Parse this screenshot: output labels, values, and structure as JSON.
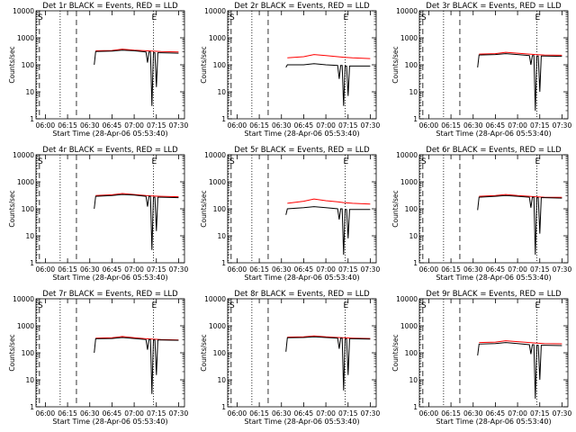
{
  "chart_data": [
    {
      "type": "line",
      "title": "Det 1r BLACK = Events, RED = LLD",
      "xlabel": "Start Time (28-Apr-06 05:53:40)",
      "ylabel": "Counts/sec",
      "yscale": "log",
      "ylim": [
        1,
        10000
      ],
      "xlim": [
        "05:53:40",
        "07:34:00"
      ],
      "x_ticks": [
        "06:00",
        "06:15",
        "06:30",
        "06:45",
        "07:00",
        "07:15",
        "07:30"
      ],
      "y_ticks": [
        "1",
        "10",
        "100",
        "1000",
        "10000"
      ],
      "markers": [
        "S",
        "E"
      ],
      "vlines_dotted": [
        "05:54",
        "06:10",
        "07:13"
      ],
      "vlines_dashed": [
        "05:56",
        "06:21"
      ],
      "series": [
        {
          "name": "Events",
          "color": "#000000",
          "x": [
            "06:33",
            "06:34",
            "06:45",
            "06:52",
            "07:00",
            "07:08",
            "07:09",
            "07:10",
            "07:11",
            "07:12",
            "07:13",
            "07:14",
            "07:15",
            "07:16",
            "07:17",
            "07:18",
            "07:30"
          ],
          "values": [
            100,
            310,
            320,
            350,
            330,
            300,
            120,
            300,
            300,
            3,
            280,
            280,
            15,
            280,
            280,
            280,
            270
          ]
        },
        {
          "name": "LLD",
          "color": "#ff0000",
          "x": [
            "06:34",
            "06:45",
            "06:52",
            "07:00",
            "07:08",
            "07:12",
            "07:18",
            "07:30"
          ],
          "values": [
            330,
            340,
            380,
            350,
            330,
            320,
            310,
            300
          ]
        }
      ]
    },
    {
      "type": "line",
      "title": "Det 2r BLACK = Events, RED = LLD",
      "xlabel": "Start Time (28-Apr-06 05:53:40)",
      "ylabel": "Counts/sec",
      "yscale": "log",
      "ylim": [
        1,
        10000
      ],
      "xlim": [
        "05:53:40",
        "07:34:00"
      ],
      "x_ticks": [
        "06:00",
        "06:15",
        "06:30",
        "06:45",
        "07:00",
        "07:15",
        "07:30"
      ],
      "y_ticks": [
        "1",
        "10",
        "100",
        "1000",
        "10000"
      ],
      "markers": [
        "S",
        "E"
      ],
      "vlines_dotted": [
        "05:54",
        "06:10",
        "07:13"
      ],
      "vlines_dashed": [
        "05:56",
        "06:21"
      ],
      "series": [
        {
          "name": "Events",
          "color": "#000000",
          "x": [
            "06:33",
            "06:34",
            "06:45",
            "06:52",
            "07:00",
            "07:08",
            "07:09",
            "07:10",
            "07:11",
            "07:12",
            "07:13",
            "07:14",
            "07:15",
            "07:16",
            "07:17",
            "07:18",
            "07:30"
          ],
          "values": [
            80,
            100,
            100,
            110,
            100,
            95,
            30,
            95,
            95,
            3,
            90,
            90,
            7,
            90,
            90,
            90,
            90
          ]
        },
        {
          "name": "LLD",
          "color": "#ff0000",
          "x": [
            "06:34",
            "06:45",
            "06:52",
            "07:00",
            "07:08",
            "07:12",
            "07:18",
            "07:30"
          ],
          "values": [
            180,
            200,
            240,
            220,
            200,
            190,
            180,
            170
          ]
        }
      ]
    },
    {
      "type": "line",
      "title": "Det 3r BLACK = Events, RED = LLD",
      "xlabel": "Start Time (28-Apr-06 05:53:40)",
      "ylabel": "Counts/sec",
      "yscale": "log",
      "ylim": [
        1,
        10000
      ],
      "xlim": [
        "05:53:40",
        "07:34:00"
      ],
      "x_ticks": [
        "06:00",
        "06:15",
        "06:30",
        "06:45",
        "07:00",
        "07:15",
        "07:30"
      ],
      "y_ticks": [
        "1",
        "10",
        "100",
        "1000",
        "10000"
      ],
      "markers": [
        "S",
        "E"
      ],
      "vlines_dotted": [
        "05:54",
        "06:10",
        "07:13"
      ],
      "vlines_dashed": [
        "05:56",
        "06:21"
      ],
      "series": [
        {
          "name": "Events",
          "color": "#000000",
          "x": [
            "06:33",
            "06:34",
            "06:45",
            "06:52",
            "07:00",
            "07:08",
            "07:09",
            "07:10",
            "07:11",
            "07:12",
            "07:13",
            "07:14",
            "07:15",
            "07:16",
            "07:17",
            "07:18",
            "07:30"
          ],
          "values": [
            80,
            230,
            240,
            260,
            240,
            220,
            100,
            220,
            220,
            2,
            210,
            210,
            10,
            210,
            210,
            210,
            205
          ]
        },
        {
          "name": "LLD",
          "color": "#ff0000",
          "x": [
            "06:34",
            "06:45",
            "06:52",
            "07:00",
            "07:08",
            "07:12",
            "07:18",
            "07:30"
          ],
          "values": [
            250,
            260,
            290,
            270,
            250,
            240,
            230,
            225
          ]
        }
      ]
    },
    {
      "type": "line",
      "title": "Det 4r BLACK = Events, RED = LLD",
      "xlabel": "Start Time (28-Apr-06 05:53:40)",
      "ylabel": "Counts/sec",
      "yscale": "log",
      "ylim": [
        1,
        10000
      ],
      "xlim": [
        "05:53:40",
        "07:34:00"
      ],
      "x_ticks": [
        "06:00",
        "06:15",
        "06:30",
        "06:45",
        "07:00",
        "07:15",
        "07:30"
      ],
      "y_ticks": [
        "1",
        "10",
        "100",
        "1000",
        "10000"
      ],
      "markers": [
        "S",
        "E"
      ],
      "vlines_dotted": [
        "05:54",
        "06:10",
        "07:13"
      ],
      "vlines_dashed": [
        "05:56",
        "06:21"
      ],
      "series": [
        {
          "name": "Events",
          "color": "#000000",
          "x": [
            "06:33",
            "06:34",
            "06:45",
            "06:52",
            "07:00",
            "07:08",
            "07:09",
            "07:10",
            "07:11",
            "07:12",
            "07:13",
            "07:14",
            "07:15",
            "07:16",
            "07:17",
            "07:18",
            "07:30"
          ],
          "values": [
            100,
            290,
            310,
            340,
            320,
            290,
            120,
            290,
            290,
            3,
            270,
            270,
            15,
            270,
            270,
            270,
            260
          ]
        },
        {
          "name": "LLD",
          "color": "#ff0000",
          "x": [
            "06:34",
            "06:45",
            "06:52",
            "07:00",
            "07:08",
            "07:12",
            "07:18",
            "07:30"
          ],
          "values": [
            310,
            330,
            370,
            340,
            310,
            300,
            290,
            280
          ]
        }
      ]
    },
    {
      "type": "line",
      "title": "Det 5r BLACK = Events, RED = LLD",
      "xlabel": "Start Time (28-Apr-06 05:53:40)",
      "ylabel": "Counts/sec",
      "yscale": "log",
      "ylim": [
        1,
        10000
      ],
      "xlim": [
        "05:53:40",
        "07:34:00"
      ],
      "x_ticks": [
        "06:00",
        "06:15",
        "06:30",
        "06:45",
        "07:00",
        "07:15",
        "07:30"
      ],
      "y_ticks": [
        "1",
        "10",
        "100",
        "1000",
        "10000"
      ],
      "markers": [
        "S",
        "E"
      ],
      "vlines_dotted": [
        "05:54",
        "06:10",
        "07:13"
      ],
      "vlines_dashed": [
        "05:56",
        "06:21"
      ],
      "series": [
        {
          "name": "Events",
          "color": "#000000",
          "x": [
            "06:33",
            "06:34",
            "06:45",
            "06:52",
            "07:00",
            "07:08",
            "07:09",
            "07:10",
            "07:11",
            "07:12",
            "07:13",
            "07:14",
            "07:15",
            "07:16",
            "07:17",
            "07:18",
            "07:30"
          ],
          "values": [
            60,
            100,
            110,
            120,
            110,
            100,
            40,
            100,
            100,
            2,
            95,
            95,
            8,
            95,
            95,
            95,
            95
          ]
        },
        {
          "name": "LLD",
          "color": "#ff0000",
          "x": [
            "06:34",
            "06:45",
            "06:52",
            "07:00",
            "07:08",
            "07:12",
            "07:18",
            "07:30"
          ],
          "values": [
            160,
            190,
            230,
            200,
            180,
            170,
            160,
            150
          ]
        }
      ]
    },
    {
      "type": "line",
      "title": "Det 6r BLACK = Events, RED = LLD",
      "xlabel": "Start Time (28-Apr-06 05:53:40)",
      "ylabel": "Counts/sec",
      "yscale": "log",
      "ylim": [
        1,
        10000
      ],
      "xlim": [
        "05:53:40",
        "07:34:00"
      ],
      "x_ticks": [
        "06:00",
        "06:15",
        "06:30",
        "06:45",
        "07:00",
        "07:15",
        "07:30"
      ],
      "y_ticks": [
        "1",
        "10",
        "100",
        "1000",
        "10000"
      ],
      "markers": [
        "S",
        "E"
      ],
      "vlines_dotted": [
        "05:54",
        "06:10",
        "07:13"
      ],
      "vlines_dashed": [
        "05:56",
        "06:21"
      ],
      "series": [
        {
          "name": "Events",
          "color": "#000000",
          "x": [
            "06:33",
            "06:34",
            "06:45",
            "06:52",
            "07:00",
            "07:08",
            "07:09",
            "07:10",
            "07:11",
            "07:12",
            "07:13",
            "07:14",
            "07:15",
            "07:16",
            "07:17",
            "07:18",
            "07:30"
          ],
          "values": [
            90,
            270,
            290,
            310,
            290,
            270,
            110,
            270,
            270,
            2,
            260,
            260,
            12,
            260,
            260,
            260,
            250
          ]
        },
        {
          "name": "LLD",
          "color": "#ff0000",
          "x": [
            "06:34",
            "06:45",
            "06:52",
            "07:00",
            "07:08",
            "07:12",
            "07:18",
            "07:30"
          ],
          "values": [
            290,
            310,
            340,
            310,
            290,
            280,
            270,
            265
          ]
        }
      ]
    },
    {
      "type": "line",
      "title": "Det 7r BLACK = Events, RED = LLD",
      "xlabel": "Start Time (28-Apr-06 05:53:40)",
      "ylabel": "Counts/sec",
      "yscale": "log",
      "ylim": [
        1,
        10000
      ],
      "xlim": [
        "05:53:40",
        "07:34:00"
      ],
      "x_ticks": [
        "06:00",
        "06:15",
        "06:30",
        "06:45",
        "07:00",
        "07:15",
        "07:30"
      ],
      "y_ticks": [
        "1",
        "10",
        "100",
        "1000",
        "10000"
      ],
      "markers": [
        "S",
        "E"
      ],
      "vlines_dotted": [
        "05:54",
        "06:10",
        "07:13"
      ],
      "vlines_dashed": [
        "05:56",
        "06:21"
      ],
      "series": [
        {
          "name": "Events",
          "color": "#000000",
          "x": [
            "06:33",
            "06:34",
            "06:45",
            "06:52",
            "07:00",
            "07:08",
            "07:09",
            "07:10",
            "07:11",
            "07:12",
            "07:13",
            "07:14",
            "07:15",
            "07:16",
            "07:17",
            "07:18",
            "07:30"
          ],
          "values": [
            100,
            330,
            340,
            370,
            340,
            310,
            130,
            310,
            310,
            3,
            300,
            300,
            15,
            300,
            300,
            300,
            290
          ]
        },
        {
          "name": "LLD",
          "color": "#ff0000",
          "x": [
            "06:34",
            "06:45",
            "06:52",
            "07:00",
            "07:08",
            "07:12",
            "07:18",
            "07:30"
          ],
          "values": [
            350,
            360,
            400,
            360,
            330,
            320,
            310,
            300
          ]
        }
      ]
    },
    {
      "type": "line",
      "title": "Det 8r BLACK = Events, RED = LLD",
      "xlabel": "Start Time (28-Apr-06 05:53:40)",
      "ylabel": "Counts/sec",
      "yscale": "log",
      "ylim": [
        1,
        10000
      ],
      "xlim": [
        "05:53:40",
        "07:34:00"
      ],
      "x_ticks": [
        "06:00",
        "06:15",
        "06:30",
        "06:45",
        "07:00",
        "07:15",
        "07:30"
      ],
      "y_ticks": [
        "1",
        "10",
        "100",
        "1000",
        "10000"
      ],
      "markers": [
        "S",
        "E"
      ],
      "vlines_dotted": [
        "05:54",
        "06:10",
        "07:13"
      ],
      "vlines_dashed": [
        "05:56",
        "06:21"
      ],
      "series": [
        {
          "name": "Events",
          "color": "#000000",
          "x": [
            "06:33",
            "06:34",
            "06:45",
            "06:52",
            "07:00",
            "07:08",
            "07:09",
            "07:10",
            "07:11",
            "07:12",
            "07:13",
            "07:14",
            "07:15",
            "07:16",
            "07:17",
            "07:18",
            "07:30"
          ],
          "values": [
            110,
            360,
            370,
            390,
            370,
            350,
            140,
            350,
            350,
            4,
            330,
            330,
            15,
            330,
            330,
            330,
            320
          ]
        },
        {
          "name": "LLD",
          "color": "#ff0000",
          "x": [
            "06:34",
            "06:45",
            "06:52",
            "07:00",
            "07:08",
            "07:12",
            "07:18",
            "07:30"
          ],
          "values": [
            380,
            390,
            420,
            390,
            370,
            360,
            350,
            340
          ]
        }
      ]
    },
    {
      "type": "line",
      "title": "Det 9r BLACK = Events, RED = LLD",
      "xlabel": "Start Time (28-Apr-06 05:53:40)",
      "ylabel": "Counts/sec",
      "yscale": "log",
      "ylim": [
        1,
        10000
      ],
      "xlim": [
        "05:53:40",
        "07:34:00"
      ],
      "x_ticks": [
        "06:00",
        "06:15",
        "06:30",
        "06:45",
        "07:00",
        "07:15",
        "07:30"
      ],
      "y_ticks": [
        "1",
        "10",
        "100",
        "1000",
        "10000"
      ],
      "markers": [
        "S",
        "E"
      ],
      "vlines_dotted": [
        "05:54",
        "06:10",
        "07:13"
      ],
      "vlines_dashed": [
        "05:56",
        "06:21"
      ],
      "series": [
        {
          "name": "Events",
          "color": "#000000",
          "x": [
            "06:33",
            "06:34",
            "06:45",
            "06:52",
            "07:00",
            "07:08",
            "07:09",
            "07:10",
            "07:11",
            "07:12",
            "07:13",
            "07:14",
            "07:15",
            "07:16",
            "07:17",
            "07:18",
            "07:30"
          ],
          "values": [
            80,
            210,
            220,
            240,
            220,
            200,
            90,
            200,
            200,
            2,
            190,
            190,
            10,
            190,
            190,
            190,
            185
          ]
        },
        {
          "name": "LLD",
          "color": "#ff0000",
          "x": [
            "06:34",
            "06:45",
            "06:52",
            "07:00",
            "07:08",
            "07:12",
            "07:18",
            "07:30"
          ],
          "values": [
            240,
            250,
            280,
            260,
            240,
            230,
            220,
            215
          ]
        }
      ]
    }
  ]
}
